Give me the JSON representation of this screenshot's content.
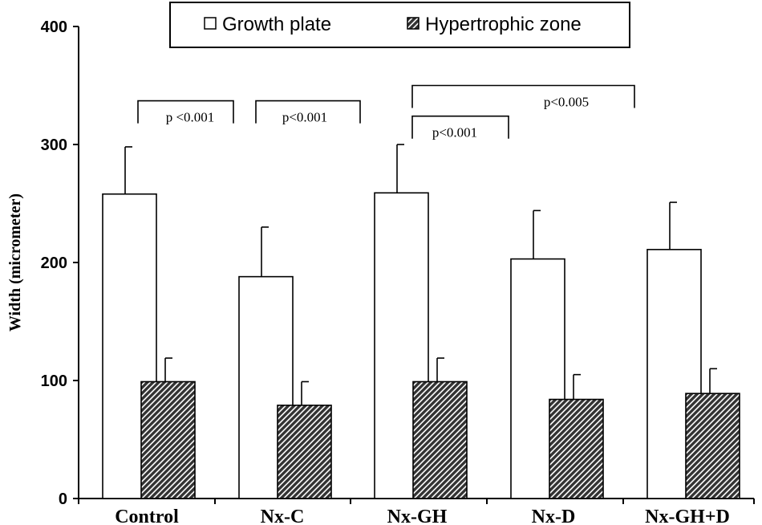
{
  "chart_data": {
    "type": "bar",
    "ylabel": "Width (micrometer)",
    "ylim": [
      0,
      400
    ],
    "yticks": [
      0,
      100,
      200,
      300,
      400
    ],
    "categories": [
      "Control",
      "Nx-C",
      "Nx-GH",
      "Nx-D",
      "Nx-GH+D"
    ],
    "series": [
      {
        "name": "Growth plate",
        "values": [
          258,
          188,
          259,
          203,
          211
        ],
        "errors": [
          40,
          42,
          41,
          41,
          40
        ],
        "color": "#ffffff",
        "pattern": "none"
      },
      {
        "name": "Hypertrophic zone",
        "values": [
          99,
          79,
          99,
          84,
          89
        ],
        "errors": [
          20,
          20,
          20,
          21,
          21
        ],
        "color": "#555555",
        "pattern": "diagonal-hatch"
      }
    ],
    "legend": "top",
    "grid": false,
    "comparisons": [
      {
        "from": "Control",
        "to": "Nx-C",
        "label": "p <0.001",
        "y": 337
      },
      {
        "from": "Nx-C",
        "to": "Nx-GH",
        "label": "p<0.001",
        "y": 337
      },
      {
        "from": "Nx-GH",
        "to": "Nx-D",
        "label": "p<0.001",
        "y": 324
      },
      {
        "from": "Nx-GH",
        "to": "Nx-GH+D",
        "label": "p<0.005",
        "y": 350
      }
    ]
  }
}
